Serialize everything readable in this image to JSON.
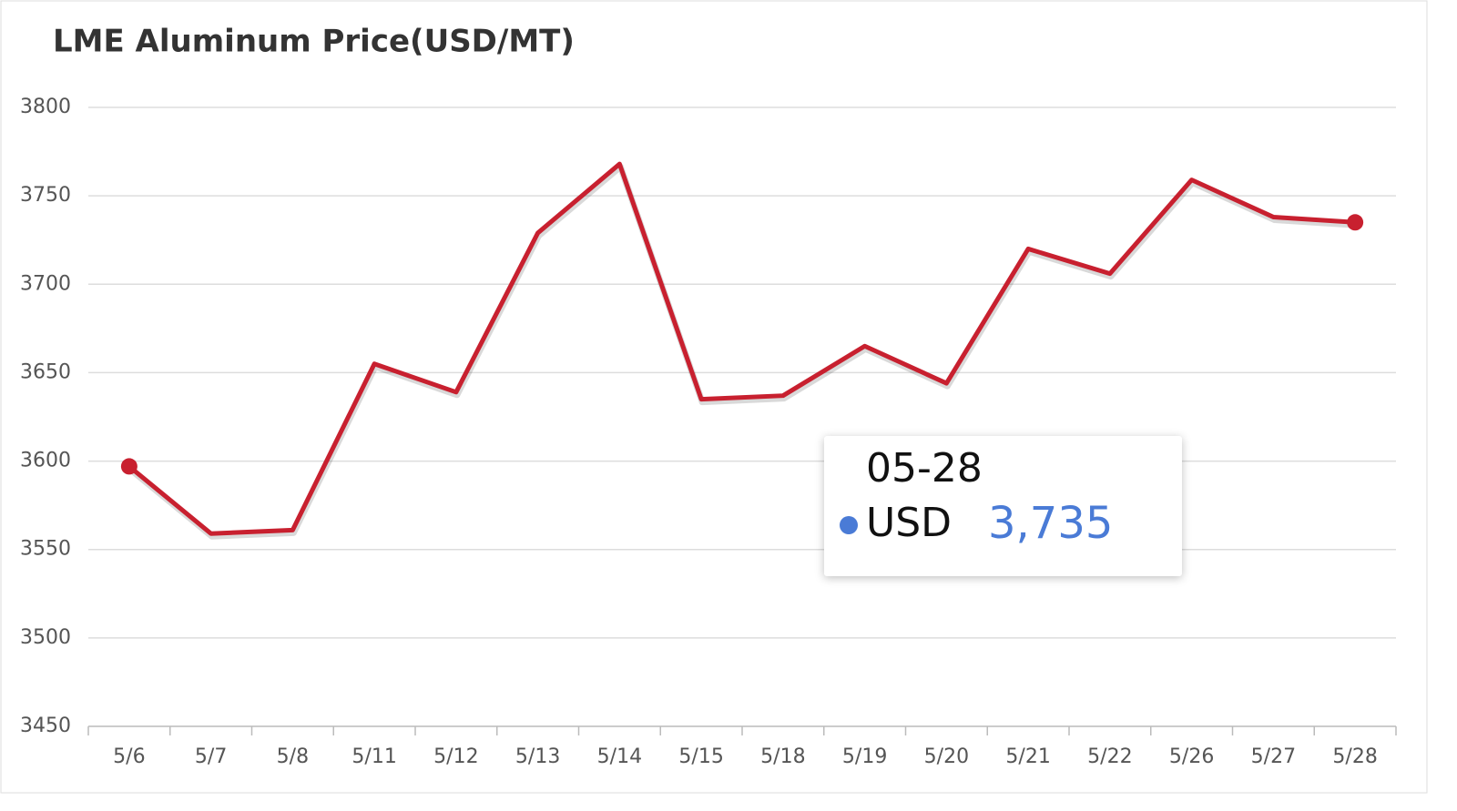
{
  "chart_data": {
    "type": "line",
    "title": "LME Aluminum Price(USD/MT)",
    "categories": [
      "5/6",
      "5/7",
      "5/8",
      "5/11",
      "5/12",
      "5/13",
      "5/14",
      "5/15",
      "5/18",
      "5/19",
      "5/20",
      "5/21",
      "5/22",
      "5/26",
      "5/27",
      "5/28"
    ],
    "series": [
      {
        "name": "USD",
        "color": "#c8202f",
        "values": [
          3597,
          3559,
          3561,
          3655,
          3639,
          3729,
          3768,
          3635,
          3637,
          3665,
          3644,
          3720,
          3706,
          3759,
          3738,
          3735
        ]
      }
    ],
    "ylim": [
      3450,
      3800
    ],
    "yticks": [
      3450,
      3500,
      3550,
      3600,
      3650,
      3700,
      3750,
      3800
    ],
    "grid": true,
    "tooltip": {
      "title": "05-28",
      "name": "USD",
      "value": 3735,
      "label": "3,735",
      "dot_color": "#4a7bd6"
    }
  }
}
